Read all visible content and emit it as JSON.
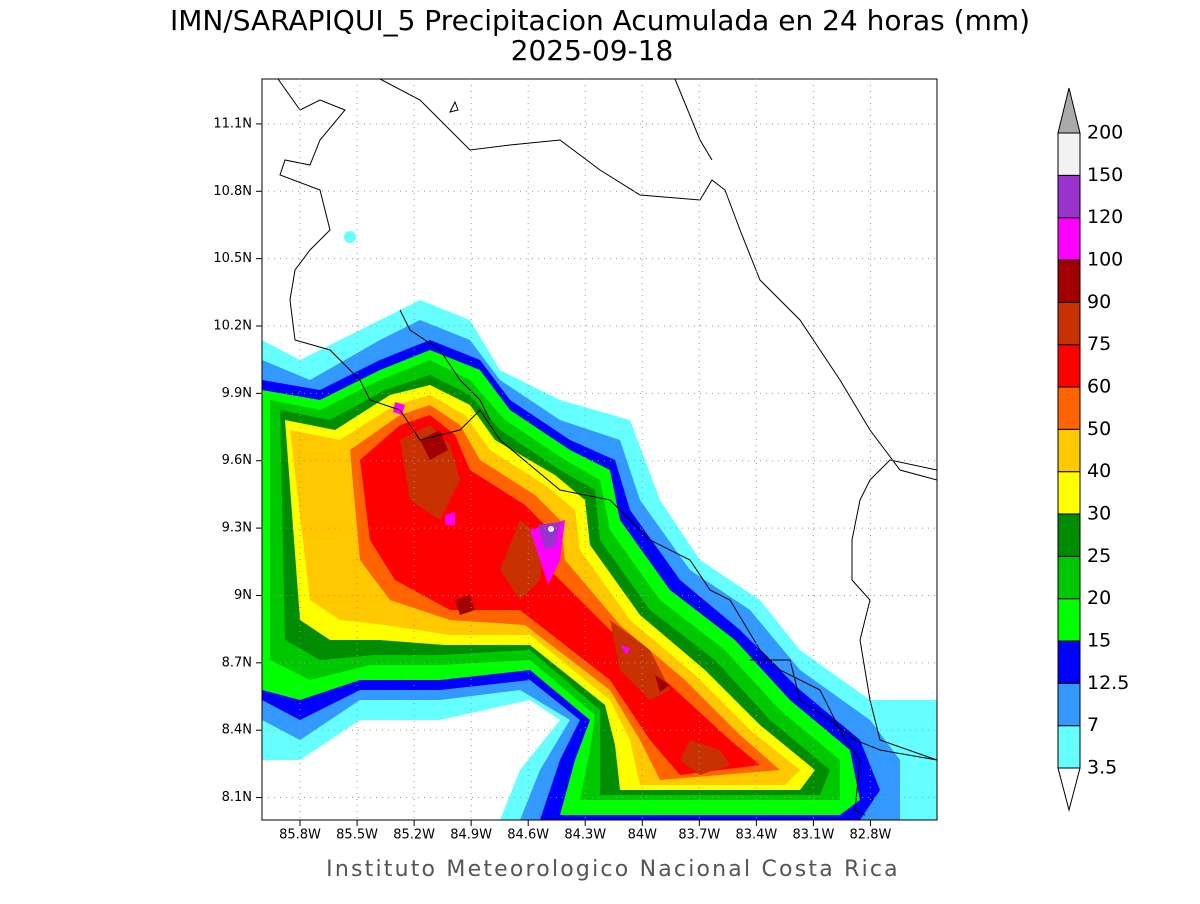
{
  "title": "IMN/SARAPIQUI_5 Precipitacion Acumulada en 24 horas (mm)",
  "subtitle": "2025-09-18",
  "footer": "Instituto Meteorologico Nacional Costa Rica",
  "map": {
    "latlim": [
      8.0,
      11.3
    ],
    "lonlim": [
      -86.0,
      -82.45
    ],
    "lat_ticks": [
      {
        "value": 8.1,
        "label": "8.1N"
      },
      {
        "value": 8.4,
        "label": "8.4N"
      },
      {
        "value": 8.7,
        "label": "8.7N"
      },
      {
        "value": 9.0,
        "label": "9N"
      },
      {
        "value": 9.3,
        "label": "9.3N"
      },
      {
        "value": 9.6,
        "label": "9.6N"
      },
      {
        "value": 9.9,
        "label": "9.9N"
      },
      {
        "value": 10.2,
        "label": "10.2N"
      },
      {
        "value": 10.5,
        "label": "10.5N"
      },
      {
        "value": 10.8,
        "label": "10.8N"
      },
      {
        "value": 11.1,
        "label": "11.1N"
      }
    ],
    "lon_ticks": [
      {
        "value": -85.8,
        "label": "85.8W"
      },
      {
        "value": -85.5,
        "label": "85.5W"
      },
      {
        "value": -85.2,
        "label": "85.2W"
      },
      {
        "value": -84.9,
        "label": "84.9W"
      },
      {
        "value": -84.6,
        "label": "84.6W"
      },
      {
        "value": -84.3,
        "label": "84.3W"
      },
      {
        "value": -84.0,
        "label": "84W"
      },
      {
        "value": -83.7,
        "label": "83.7W"
      },
      {
        "value": -83.4,
        "label": "83.4W"
      },
      {
        "value": -83.1,
        "label": "83.1W"
      },
      {
        "value": -82.8,
        "label": "82.8W"
      }
    ]
  },
  "legend": {
    "levels": [
      3.5,
      7,
      12.5,
      15,
      20,
      25,
      30,
      40,
      50,
      60,
      75,
      90,
      100,
      120,
      150,
      200
    ],
    "colors": [
      "#66ffff",
      "#3399ff",
      "#0000ff",
      "#00ff00",
      "#00c800",
      "#008c00",
      "#ffff00",
      "#ffc800",
      "#ff6400",
      "#ff0000",
      "#c83200",
      "#a00000",
      "#ff00ff",
      "#9a32cd",
      "#f2f2f2"
    ],
    "over_color": "#aaaaaa",
    "under_color": "#ffffff"
  }
}
